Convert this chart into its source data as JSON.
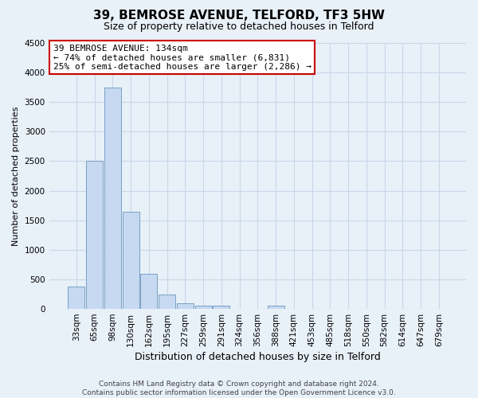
{
  "title": "39, BEMROSE AVENUE, TELFORD, TF3 5HW",
  "subtitle": "Size of property relative to detached houses in Telford",
  "xlabel": "Distribution of detached houses by size in Telford",
  "ylabel": "Number of detached properties",
  "bin_labels": [
    "33sqm",
    "65sqm",
    "98sqm",
    "130sqm",
    "162sqm",
    "195sqm",
    "227sqm",
    "259sqm",
    "291sqm",
    "324sqm",
    "356sqm",
    "388sqm",
    "421sqm",
    "453sqm",
    "485sqm",
    "518sqm",
    "550sqm",
    "582sqm",
    "614sqm",
    "647sqm",
    "679sqm"
  ],
  "bar_heights": [
    380,
    2500,
    3750,
    1640,
    600,
    240,
    100,
    55,
    55,
    0,
    0,
    55,
    0,
    0,
    0,
    0,
    0,
    0,
    0,
    0,
    0
  ],
  "bar_color": "#c6d9f1",
  "bar_edge_color": "#7aa0c4",
  "ylim": [
    0,
    4500
  ],
  "yticks": [
    0,
    500,
    1000,
    1500,
    2000,
    2500,
    3000,
    3500,
    4000,
    4500
  ],
  "annotation_title": "39 BEMROSE AVENUE: 134sqm",
  "annotation_line1": "← 74% of detached houses are smaller (6,831)",
  "annotation_line2": "25% of semi-detached houses are larger (2,286) →",
  "annotation_box_color": "#ffffff",
  "annotation_box_edge": "#cc0000",
  "grid_color": "#c8d8e8",
  "footer_line1": "Contains HM Land Registry data © Crown copyright and database right 2024.",
  "footer_line2": "Contains public sector information licensed under the Open Government Licence v3.0.",
  "background_color": "#e8f0f8",
  "title_fontsize": 11,
  "subtitle_fontsize": 9,
  "tick_fontsize": 7.5,
  "ylabel_fontsize": 8,
  "xlabel_fontsize": 9,
  "annotation_fontsize": 8,
  "footer_fontsize": 6.5
}
